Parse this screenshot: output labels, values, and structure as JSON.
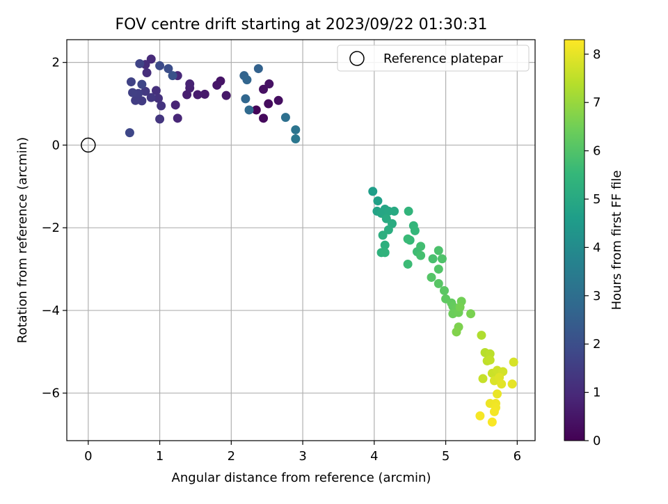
{
  "chart_data": {
    "type": "scatter",
    "title": "FOV centre drift starting at 2023/09/22 01:30:31",
    "xlabel": "Angular distance from reference (arcmin)",
    "ylabel": "Rotation from reference (arcmin)",
    "xlim": [
      -0.3,
      6.25
    ],
    "ylim": [
      -7.15,
      2.55
    ],
    "xticks": [
      0,
      1,
      2,
      3,
      4,
      5,
      6
    ],
    "yticks": [
      2,
      0,
      -2,
      -4,
      -6
    ],
    "ytick_labels": [
      "2",
      "0",
      "−2",
      "−4",
      "−6"
    ],
    "grid": true,
    "legend": {
      "position": "top-right",
      "label": "Reference platepar"
    },
    "reference_point": {
      "x": 0,
      "y": 0
    },
    "colorbar": {
      "label": "Hours from first FF file",
      "range": [
        0,
        8.3
      ],
      "ticks": [
        0,
        1,
        2,
        3,
        4,
        5,
        6,
        7,
        8
      ],
      "colormap": [
        "#440154",
        "#482878",
        "#3e4989",
        "#31688e",
        "#26828e",
        "#1f9e89",
        "#35b779",
        "#6ece58",
        "#b5de2b",
        "#fde725"
      ]
    },
    "points": [
      {
        "x": 2.35,
        "y": 0.85,
        "h": 0.1
      },
      {
        "x": 2.45,
        "y": 0.65,
        "h": 0.2
      },
      {
        "x": 2.52,
        "y": 1.0,
        "h": 0.25
      },
      {
        "x": 2.66,
        "y": 1.08,
        "h": 0.3
      },
      {
        "x": 2.45,
        "y": 1.35,
        "h": 0.35
      },
      {
        "x": 2.53,
        "y": 1.48,
        "h": 0.4
      },
      {
        "x": 1.85,
        "y": 1.55,
        "h": 0.45
      },
      {
        "x": 1.8,
        "y": 1.45,
        "h": 0.5
      },
      {
        "x": 1.93,
        "y": 1.2,
        "h": 0.55
      },
      {
        "x": 1.63,
        "y": 1.23,
        "h": 0.6
      },
      {
        "x": 1.53,
        "y": 1.22,
        "h": 0.65
      },
      {
        "x": 1.38,
        "y": 1.22,
        "h": 0.7
      },
      {
        "x": 1.42,
        "y": 1.38,
        "h": 0.75
      },
      {
        "x": 1.42,
        "y": 1.48,
        "h": 0.8
      },
      {
        "x": 1.22,
        "y": 0.97,
        "h": 0.85
      },
      {
        "x": 1.25,
        "y": 0.65,
        "h": 0.9
      },
      {
        "x": 1.25,
        "y": 1.68,
        "h": 0.95
      },
      {
        "x": 0.88,
        "y": 2.08,
        "h": 1.0
      },
      {
        "x": 0.8,
        "y": 1.95,
        "h": 1.05
      },
      {
        "x": 0.82,
        "y": 1.75,
        "h": 1.1
      },
      {
        "x": 0.95,
        "y": 1.32,
        "h": 1.15
      },
      {
        "x": 0.98,
        "y": 1.13,
        "h": 1.2
      },
      {
        "x": 1.02,
        "y": 0.95,
        "h": 1.25
      },
      {
        "x": 1.0,
        "y": 0.63,
        "h": 1.3
      },
      {
        "x": 0.88,
        "y": 1.15,
        "h": 1.35
      },
      {
        "x": 0.8,
        "y": 1.3,
        "h": 1.4
      },
      {
        "x": 0.75,
        "y": 1.07,
        "h": 1.45
      },
      {
        "x": 0.66,
        "y": 1.08,
        "h": 1.5
      },
      {
        "x": 0.7,
        "y": 1.25,
        "h": 1.55
      },
      {
        "x": 0.62,
        "y": 1.27,
        "h": 1.6
      },
      {
        "x": 0.6,
        "y": 1.53,
        "h": 1.65
      },
      {
        "x": 0.72,
        "y": 1.97,
        "h": 1.7
      },
      {
        "x": 0.75,
        "y": 1.47,
        "h": 1.75
      },
      {
        "x": 0.58,
        "y": 0.3,
        "h": 1.8
      },
      {
        "x": 1.0,
        "y": 1.92,
        "h": 1.9
      },
      {
        "x": 1.12,
        "y": 1.85,
        "h": 2.0
      },
      {
        "x": 1.18,
        "y": 1.68,
        "h": 2.1
      },
      {
        "x": 2.38,
        "y": 1.85,
        "h": 2.6
      },
      {
        "x": 2.18,
        "y": 1.68,
        "h": 2.65
      },
      {
        "x": 2.22,
        "y": 1.58,
        "h": 2.7
      },
      {
        "x": 2.2,
        "y": 1.12,
        "h": 2.75
      },
      {
        "x": 2.25,
        "y": 0.85,
        "h": 2.85
      },
      {
        "x": 2.76,
        "y": 0.67,
        "h": 3.05
      },
      {
        "x": 2.9,
        "y": 0.37,
        "h": 3.2
      },
      {
        "x": 2.9,
        "y": 0.15,
        "h": 3.3
      },
      {
        "x": 3.98,
        "y": -1.12,
        "h": 4.6
      },
      {
        "x": 4.05,
        "y": -1.35,
        "h": 4.7
      },
      {
        "x": 4.04,
        "y": -1.6,
        "h": 4.8
      },
      {
        "x": 4.15,
        "y": -1.55,
        "h": 4.85
      },
      {
        "x": 4.1,
        "y": -1.65,
        "h": 4.9
      },
      {
        "x": 4.2,
        "y": -1.6,
        "h": 4.95
      },
      {
        "x": 4.28,
        "y": -1.6,
        "h": 5.0
      },
      {
        "x": 4.17,
        "y": -1.78,
        "h": 5.05
      },
      {
        "x": 4.25,
        "y": -1.9,
        "h": 5.1
      },
      {
        "x": 4.2,
        "y": -2.05,
        "h": 5.15
      },
      {
        "x": 4.12,
        "y": -2.18,
        "h": 5.2
      },
      {
        "x": 4.15,
        "y": -2.42,
        "h": 5.25
      },
      {
        "x": 4.1,
        "y": -2.6,
        "h": 5.3
      },
      {
        "x": 4.15,
        "y": -2.6,
        "h": 5.35
      },
      {
        "x": 4.48,
        "y": -1.6,
        "h": 5.4
      },
      {
        "x": 4.55,
        "y": -1.95,
        "h": 5.45
      },
      {
        "x": 4.57,
        "y": -2.07,
        "h": 5.5
      },
      {
        "x": 4.5,
        "y": -2.3,
        "h": 5.55
      },
      {
        "x": 4.47,
        "y": -2.27,
        "h": 5.6
      },
      {
        "x": 4.47,
        "y": -2.88,
        "h": 5.65
      },
      {
        "x": 4.6,
        "y": -2.58,
        "h": 5.7
      },
      {
        "x": 4.65,
        "y": -2.45,
        "h": 5.75
      },
      {
        "x": 4.65,
        "y": -2.67,
        "h": 5.8
      },
      {
        "x": 4.82,
        "y": -2.75,
        "h": 5.85
      },
      {
        "x": 4.9,
        "y": -2.55,
        "h": 5.9
      },
      {
        "x": 4.95,
        "y": -2.75,
        "h": 5.95
      },
      {
        "x": 4.9,
        "y": -3.0,
        "h": 6.0
      },
      {
        "x": 4.8,
        "y": -3.2,
        "h": 6.05
      },
      {
        "x": 4.9,
        "y": -3.35,
        "h": 6.1
      },
      {
        "x": 4.98,
        "y": -3.52,
        "h": 6.15
      },
      {
        "x": 5.0,
        "y": -3.72,
        "h": 6.2
      },
      {
        "x": 5.08,
        "y": -3.82,
        "h": 6.25
      },
      {
        "x": 5.1,
        "y": -3.9,
        "h": 6.3
      },
      {
        "x": 5.15,
        "y": -3.95,
        "h": 6.35
      },
      {
        "x": 5.1,
        "y": -4.08,
        "h": 6.4
      },
      {
        "x": 5.18,
        "y": -4.05,
        "h": 6.45
      },
      {
        "x": 5.22,
        "y": -3.78,
        "h": 6.5
      },
      {
        "x": 5.2,
        "y": -3.92,
        "h": 6.55
      },
      {
        "x": 5.35,
        "y": -4.08,
        "h": 6.6
      },
      {
        "x": 5.18,
        "y": -4.4,
        "h": 6.65
      },
      {
        "x": 5.15,
        "y": -4.52,
        "h": 6.7
      },
      {
        "x": 5.5,
        "y": -4.6,
        "h": 7.3
      },
      {
        "x": 5.55,
        "y": -5.02,
        "h": 7.4
      },
      {
        "x": 5.62,
        "y": -5.05,
        "h": 7.45
      },
      {
        "x": 5.58,
        "y": -5.22,
        "h": 7.5
      },
      {
        "x": 5.62,
        "y": -5.2,
        "h": 7.55
      },
      {
        "x": 5.52,
        "y": -5.65,
        "h": 7.6
      },
      {
        "x": 5.65,
        "y": -5.52,
        "h": 7.65
      },
      {
        "x": 5.72,
        "y": -5.45,
        "h": 7.7
      },
      {
        "x": 5.8,
        "y": -5.48,
        "h": 7.75
      },
      {
        "x": 5.95,
        "y": -5.25,
        "h": 7.8
      },
      {
        "x": 5.68,
        "y": -5.7,
        "h": 7.85
      },
      {
        "x": 5.75,
        "y": -5.62,
        "h": 7.9
      },
      {
        "x": 5.78,
        "y": -5.78,
        "h": 7.95
      },
      {
        "x": 5.93,
        "y": -5.78,
        "h": 8.0
      },
      {
        "x": 5.72,
        "y": -6.02,
        "h": 8.05
      },
      {
        "x": 5.62,
        "y": -6.25,
        "h": 8.1
      },
      {
        "x": 5.7,
        "y": -6.25,
        "h": 8.12
      },
      {
        "x": 5.7,
        "y": -6.35,
        "h": 8.15
      },
      {
        "x": 5.68,
        "y": -6.45,
        "h": 8.18
      },
      {
        "x": 5.48,
        "y": -6.55,
        "h": 8.2
      },
      {
        "x": 5.65,
        "y": -6.7,
        "h": 8.25
      }
    ]
  }
}
